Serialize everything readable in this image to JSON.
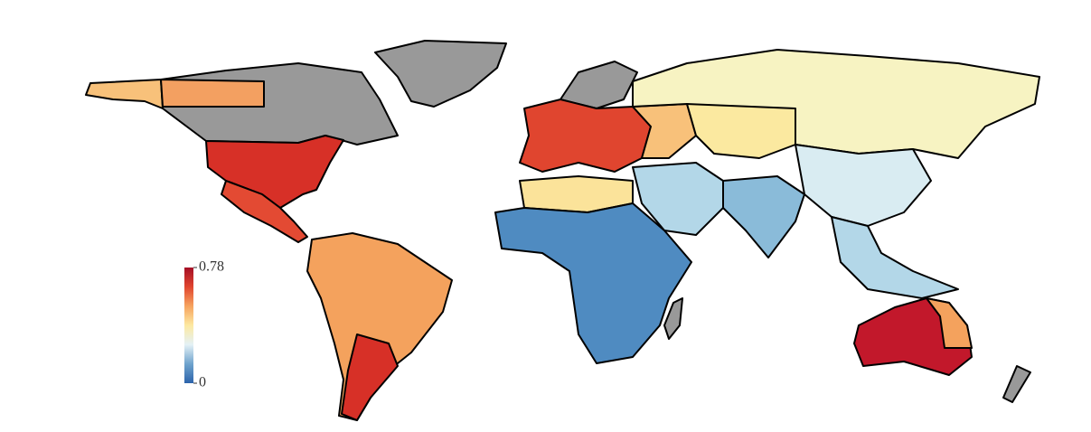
{
  "chart_data": {
    "type": "choropleth",
    "colorbar": {
      "lim": [
        0,
        0.78
      ],
      "ticks": [
        0,
        0.78
      ],
      "colors": [
        "#2c63ab",
        "#6fa3cd",
        "#e4f1f6",
        "#fde9a1",
        "#f6a35f",
        "#e0452f",
        "#a50f26"
      ]
    }
  }
}
